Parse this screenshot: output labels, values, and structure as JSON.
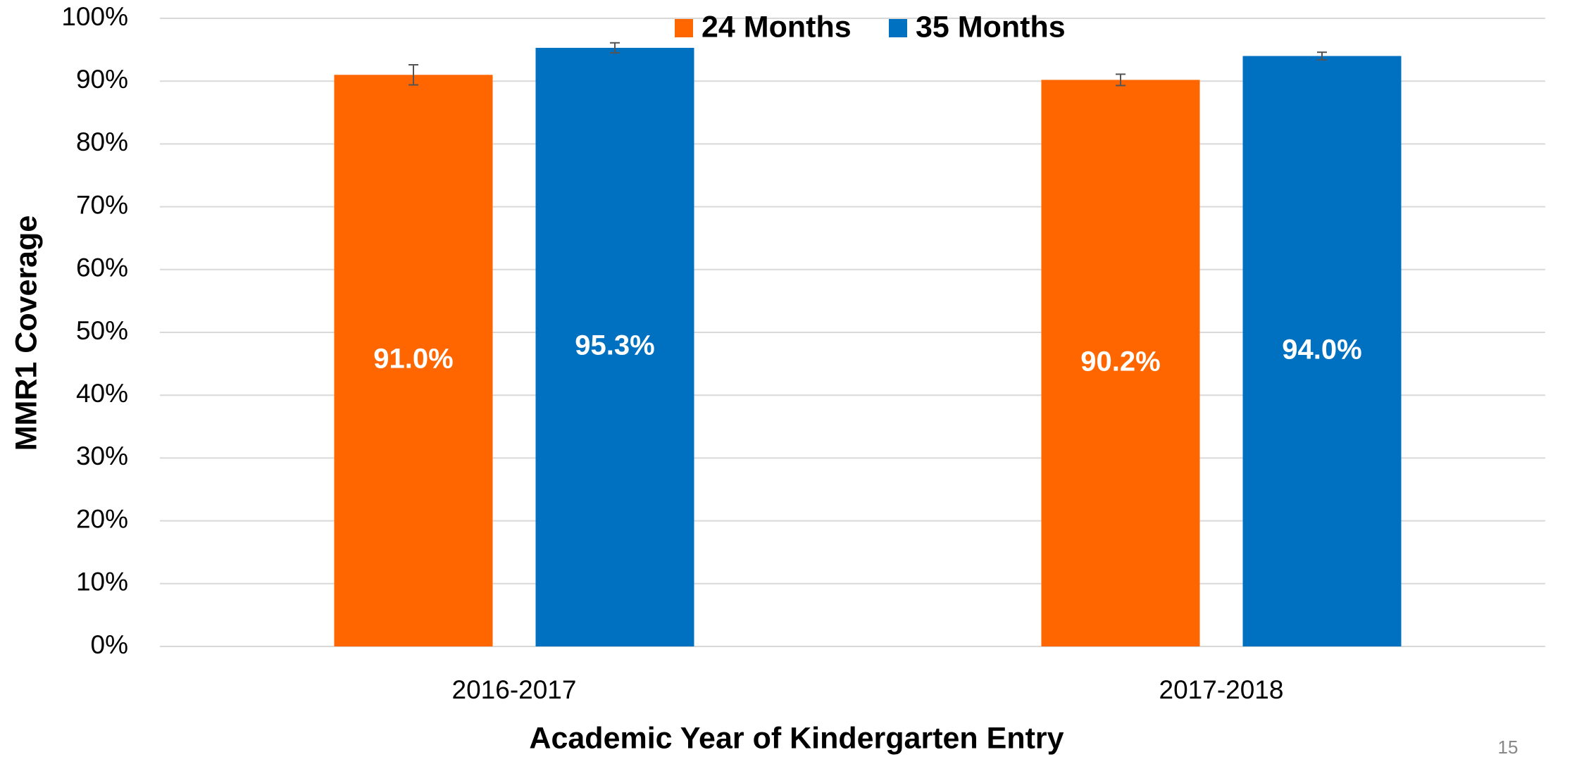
{
  "chart_data": {
    "type": "bar",
    "categories": [
      "2016-2017",
      "2017-2018"
    ],
    "series": [
      {
        "name": "24 Months",
        "color": "#ff6600",
        "values": [
          91.0,
          90.2
        ],
        "value_labels": [
          "91.0%",
          "90.2%"
        ],
        "errors": [
          1.6,
          0.9
        ]
      },
      {
        "name": "35 Months",
        "color": "#0070c0",
        "values": [
          95.3,
          94.0
        ],
        "value_labels": [
          "95.3%",
          "94.0%"
        ],
        "errors": [
          0.8,
          0.6
        ]
      }
    ],
    "xlabel": "Academic Year of Kindergarten Entry",
    "ylabel": "MMR1 Coverage",
    "ylim": [
      0,
      100
    ],
    "yticks": [
      {
        "value": 0,
        "label": "0%"
      },
      {
        "value": 10,
        "label": "10%"
      },
      {
        "value": 20,
        "label": "20%"
      },
      {
        "value": 30,
        "label": "30%"
      },
      {
        "value": 40,
        "label": "40%"
      },
      {
        "value": 50,
        "label": "50%"
      },
      {
        "value": 60,
        "label": "60%"
      },
      {
        "value": 70,
        "label": "70%"
      },
      {
        "value": 80,
        "label": "80%"
      },
      {
        "value": 90,
        "label": "90%"
      },
      {
        "value": 100,
        "label": "100%"
      }
    ],
    "grid": true,
    "legend": "top",
    "page_number": "15"
  }
}
